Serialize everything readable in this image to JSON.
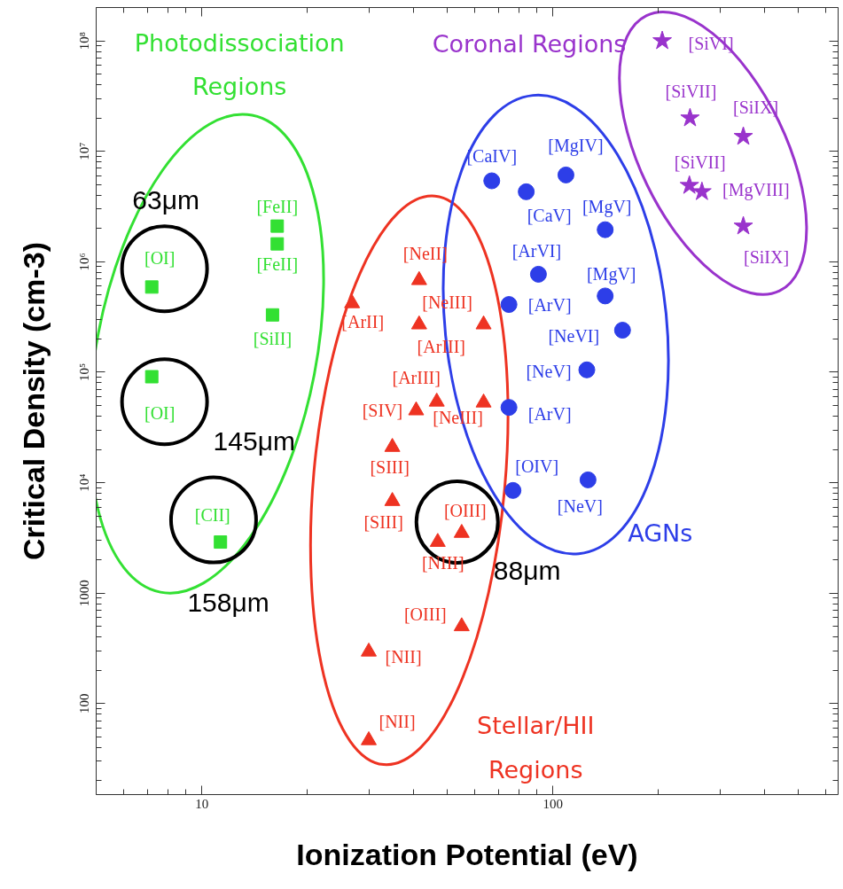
{
  "chart_data": {
    "type": "scatter",
    "xlabel": "Ionization Potential (eV)",
    "ylabel": "Critical Density (cm-3)",
    "log": "xy",
    "xlim": [
      5,
      650
    ],
    "ylim": [
      15,
      200000000
    ],
    "xticks": [
      10,
      100
    ],
    "yticks": [
      100,
      1000,
      {
        "value": 10000,
        "label": "10⁴"
      },
      {
        "value": 100000,
        "label": "10⁵"
      },
      {
        "value": 1000000,
        "label": "10⁶"
      },
      {
        "value": 10000000,
        "label": "10⁷"
      },
      {
        "value": 100000000,
        "label": "10⁸"
      }
    ],
    "series": [
      {
        "name": "Photodissociation Regions",
        "color": "#33e033",
        "marker": "square",
        "x": [
          7.2,
          7.2,
          16.4,
          16.4,
          15.9,
          11.3
        ],
        "values": [
          590000,
          91000,
          2100000,
          1450000,
          330000,
          2900
        ],
        "value_labels": [
          "[OI]",
          "[OI]",
          "[FeII]",
          "[FeII]",
          "[SiII]",
          "[CII]"
        ]
      },
      {
        "name": "Stellar/HII Regions",
        "color": "#ee3322",
        "marker": "triangle",
        "x": [
          26.8,
          41.6,
          41.6,
          63.5,
          40.8,
          46.7,
          63.5,
          34.9,
          34.9,
          47,
          55,
          55,
          29.9,
          29.9
        ],
        "values": [
          420000,
          680000,
          270000,
          270000,
          45000,
          54000,
          53000,
          21000,
          6800,
          2900,
          3500,
          500,
          295,
          46.5
        ],
        "value_labels": [
          "[ArII]",
          "[NeII]",
          "[ArIII]",
          "[NeIII]",
          "[SIV]",
          "[ArIII]",
          "[NeIII]",
          "[SIII]",
          "[SIII]",
          "[NIII]",
          "[OIII]",
          "[OIII]",
          "[NII]",
          "[NII]"
        ]
      },
      {
        "name": "AGNs",
        "color": "#2d3ee8",
        "marker": "circle",
        "x": [
          67,
          84,
          109,
          141,
          91,
          141,
          75,
          158,
          125,
          75,
          77,
          126
        ],
        "values": [
          5400000,
          4300000,
          6100000,
          1950000,
          770000,
          490000,
          410000,
          240000,
          105000,
          48000,
          8500,
          10600
        ],
        "value_labels": [
          "[CaIV]",
          "[CaV]",
          "[MgIV]",
          "[MgV]",
          "[ArVI]",
          "[MgV]",
          "[ArV]",
          "[NeVI]",
          "[NeV]",
          "[ArV]",
          "[OIV]",
          "[NeV]"
        ]
      },
      {
        "name": "Coronal Regions",
        "color": "#9933cc",
        "marker": "star",
        "x": [
          205,
          246,
          349,
          245,
          266,
          349
        ],
        "values": [
          100000000,
          20000000,
          13600000,
          4900000,
          4300000,
          2100000
        ],
        "value_labels": [
          "[SiVI]",
          "[SiVII]",
          "[SiIX]",
          "[SiVII]",
          "[MgVIII]",
          "[SiIX]"
        ]
      }
    ],
    "annotations": [
      "63μm",
      "145μm",
      "158μm",
      "88μm"
    ]
  }
}
